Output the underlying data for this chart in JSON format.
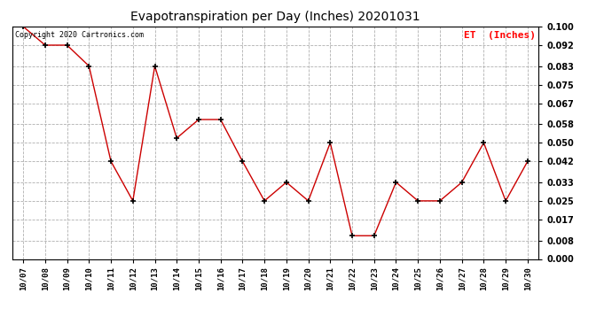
{
  "title": "Evapotranspiration per Day (Inches) 20201031",
  "legend_label": "ET  (Inches)",
  "copyright_text": "Copyright 2020 Cartronics.com",
  "dates": [
    "10/07",
    "10/08",
    "10/09",
    "10/10",
    "10/11",
    "10/12",
    "10/13",
    "10/14",
    "10/15",
    "10/16",
    "10/17",
    "10/18",
    "10/19",
    "10/20",
    "10/21",
    "10/22",
    "10/23",
    "10/24",
    "10/25",
    "10/26",
    "10/27",
    "10/28",
    "10/29",
    "10/30"
  ],
  "values": [
    0.1,
    0.092,
    0.092,
    0.083,
    0.042,
    0.025,
    0.083,
    0.052,
    0.06,
    0.06,
    0.042,
    0.025,
    0.033,
    0.025,
    0.05,
    0.01,
    0.01,
    0.033,
    0.025,
    0.025,
    0.033,
    0.05,
    0.025,
    0.042
  ],
  "line_color": "#cc0000",
  "marker_color": "#000000",
  "background_color": "#ffffff",
  "grid_color": "#b0b0b0",
  "ylim_min": 0.0,
  "ylim_max": 0.1,
  "yticks": [
    0.0,
    0.008,
    0.017,
    0.025,
    0.033,
    0.042,
    0.05,
    0.058,
    0.067,
    0.075,
    0.083,
    0.092,
    0.1
  ],
  "figwidth": 6.9,
  "figheight": 3.75,
  "dpi": 100
}
